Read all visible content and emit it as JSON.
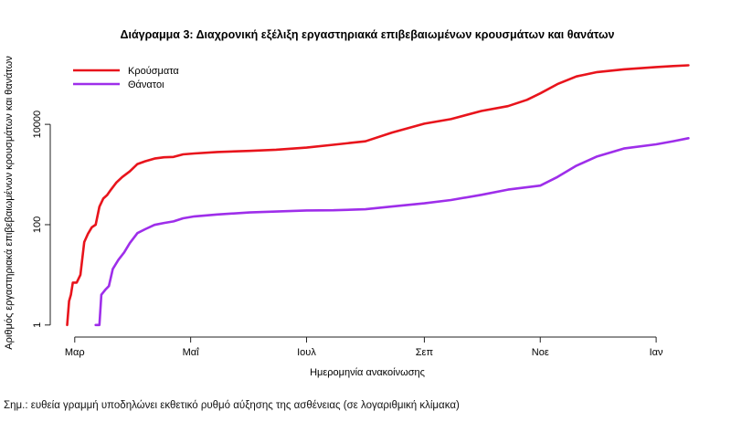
{
  "chart_data": {
    "type": "line",
    "title": "Διάγραμμα 3: Διαχρονική εξέλιξη εργαστηριακά επιβεβαιωμένων κρουσμάτων και θανάτων",
    "xlabel": "Ημερομηνία ανακοίνωσης",
    "ylabel": "Αριθμός εργαστηριακά επιβεβαιωμένων κρουσμάτων και θανάτων",
    "y_scale": "log10",
    "ylim": [
      0.6,
      300000
    ],
    "xlim": [
      "2020-02-20",
      "2021-01-25"
    ],
    "x_ticks": [
      {
        "date": "2020-03-01",
        "label": "Μαρ"
      },
      {
        "date": "2020-05-01",
        "label": "Μαΐ"
      },
      {
        "date": "2020-07-01",
        "label": "Ιουλ"
      },
      {
        "date": "2020-09-01",
        "label": "Σεπ"
      },
      {
        "date": "2020-11-01",
        "label": "Νοε"
      },
      {
        "date": "2021-01-01",
        "label": "Ιαν"
      }
    ],
    "y_ticks": [
      {
        "value": 1,
        "label": "1"
      },
      {
        "value": 100,
        "label": "100"
      },
      {
        "value": 10000,
        "label": "10000"
      }
    ],
    "grid": false,
    "legend_position": "top-left",
    "series": [
      {
        "name": "Κρούσματα",
        "color": "#e8141c",
        "points": [
          [
            "2020-02-26",
            1
          ],
          [
            "2020-02-27",
            3
          ],
          [
            "2020-02-28",
            4
          ],
          [
            "2020-02-29",
            7
          ],
          [
            "2020-03-02",
            7
          ],
          [
            "2020-03-04",
            10
          ],
          [
            "2020-03-06",
            45
          ],
          [
            "2020-03-08",
            66
          ],
          [
            "2020-03-10",
            89
          ],
          [
            "2020-03-12",
            100
          ],
          [
            "2020-03-14",
            228
          ],
          [
            "2020-03-16",
            331
          ],
          [
            "2020-03-18",
            387
          ],
          [
            "2020-03-20",
            495
          ],
          [
            "2020-03-23",
            695
          ],
          [
            "2020-03-26",
            892
          ],
          [
            "2020-03-30",
            1156
          ],
          [
            "2020-04-03",
            1613
          ],
          [
            "2020-04-07",
            1832
          ],
          [
            "2020-04-12",
            2081
          ],
          [
            "2020-04-17",
            2207
          ],
          [
            "2020-04-22",
            2245
          ],
          [
            "2020-04-27",
            2517
          ],
          [
            "2020-05-03",
            2626
          ],
          [
            "2020-05-15",
            2810
          ],
          [
            "2020-06-01",
            2952
          ],
          [
            "2020-06-15",
            3121
          ],
          [
            "2020-07-01",
            3432
          ],
          [
            "2020-07-15",
            3910
          ],
          [
            "2020-08-01",
            4587
          ],
          [
            "2020-08-15",
            6858
          ],
          [
            "2020-09-01",
            10317
          ],
          [
            "2020-09-15",
            12734
          ],
          [
            "2020-10-01",
            18475
          ],
          [
            "2020-10-15",
            23062
          ],
          [
            "2020-10-25",
            30782
          ],
          [
            "2020-11-01",
            41527
          ],
          [
            "2020-11-10",
            63321
          ],
          [
            "2020-11-20",
            90121
          ],
          [
            "2020-12-01",
            110000
          ],
          [
            "2020-12-15",
            125000
          ],
          [
            "2021-01-01",
            138850
          ],
          [
            "2021-01-10",
            145000
          ],
          [
            "2021-01-18",
            150000
          ]
        ]
      },
      {
        "name": "Θάνατοι",
        "color": "#9e2eea",
        "points": [
          [
            "2020-03-12",
            1
          ],
          [
            "2020-03-13",
            1
          ],
          [
            "2020-03-14",
            1
          ],
          [
            "2020-03-15",
            4
          ],
          [
            "2020-03-17",
            5
          ],
          [
            "2020-03-19",
            6
          ],
          [
            "2020-03-21",
            13
          ],
          [
            "2020-03-24",
            20
          ],
          [
            "2020-03-27",
            28
          ],
          [
            "2020-03-30",
            43
          ],
          [
            "2020-04-03",
            68
          ],
          [
            "2020-04-07",
            81
          ],
          [
            "2020-04-12",
            99
          ],
          [
            "2020-04-17",
            108
          ],
          [
            "2020-04-22",
            116
          ],
          [
            "2020-04-27",
            134
          ],
          [
            "2020-05-03",
            146
          ],
          [
            "2020-05-15",
            160
          ],
          [
            "2020-06-01",
            175
          ],
          [
            "2020-06-15",
            183
          ],
          [
            "2020-07-01",
            192
          ],
          [
            "2020-07-15",
            194
          ],
          [
            "2020-08-01",
            203
          ],
          [
            "2020-08-15",
            230
          ],
          [
            "2020-09-01",
            266
          ],
          [
            "2020-09-15",
            310
          ],
          [
            "2020-10-01",
            393
          ],
          [
            "2020-10-15",
            500
          ],
          [
            "2020-11-01",
            600
          ],
          [
            "2020-11-10",
            892
          ],
          [
            "2020-11-20",
            1500
          ],
          [
            "2020-12-01",
            2300
          ],
          [
            "2020-12-15",
            3300
          ],
          [
            "2021-01-01",
            4000
          ],
          [
            "2021-01-10",
            4600
          ],
          [
            "2021-01-18",
            5300
          ]
        ]
      }
    ]
  },
  "footnote": "Σημ.: ευθεία γραμμή υποδηλώνει εκθετικό ρυθμό αύξησης της ασθένειας (σε λογαριθμική κλίμακα)"
}
